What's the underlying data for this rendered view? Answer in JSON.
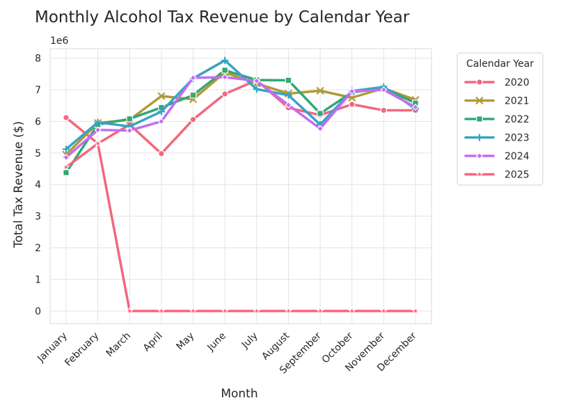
{
  "chart_data": {
    "type": "line",
    "title": "Monthly Alcohol Tax Revenue by Calendar Year",
    "xlabel": "Month",
    "ylabel": "Total Tax Revenue ($)",
    "y_offset_label": "1e6",
    "x": [
      "January",
      "February",
      "March",
      "April",
      "May",
      "June",
      "July",
      "August",
      "September",
      "October",
      "November",
      "December"
    ],
    "ylim": [
      -0.4,
      8.3
    ],
    "yticks": [
      0,
      1,
      2,
      3,
      4,
      5,
      6,
      7,
      8
    ],
    "grid": true,
    "legend": {
      "title": "Calendar Year",
      "placement": "outside-right"
    },
    "series": [
      {
        "name": "2020",
        "color": "#f2677d",
        "marker": "circle",
        "values": [
          6.12,
          5.3,
          5.9,
          4.98,
          6.06,
          6.87,
          7.3,
          6.43,
          6.2,
          6.54,
          6.35,
          6.35
        ]
      },
      {
        "name": "2021",
        "color": "#b09a38",
        "marker": "x",
        "values": [
          4.95,
          5.95,
          6.05,
          6.8,
          6.7,
          7.55,
          7.2,
          6.88,
          6.97,
          6.75,
          7.05,
          6.68
        ]
      },
      {
        "name": "2022",
        "color": "#33a776",
        "marker": "square",
        "values": [
          4.38,
          5.9,
          6.08,
          6.44,
          6.83,
          7.62,
          7.31,
          7.3,
          6.25,
          6.92,
          7.05,
          6.58
        ]
      },
      {
        "name": "2023",
        "color": "#36a3c7",
        "marker": "plus",
        "values": [
          5.12,
          5.97,
          5.84,
          6.31,
          7.36,
          7.93,
          7.02,
          6.83,
          5.9,
          6.96,
          7.09,
          6.4
        ]
      },
      {
        "name": "2024",
        "color": "#c36df2",
        "marker": "diamond",
        "values": [
          4.86,
          5.73,
          5.71,
          6.0,
          7.38,
          7.4,
          7.28,
          6.52,
          5.77,
          6.95,
          7.0,
          6.45
        ]
      },
      {
        "name": "2025",
        "color": "#f2677d",
        "marker": "star",
        "values": [
          4.55,
          5.3,
          0.0,
          0.0,
          0.0,
          0.0,
          0.0,
          0.0,
          0.0,
          0.0,
          0.0,
          0.0
        ]
      }
    ]
  }
}
